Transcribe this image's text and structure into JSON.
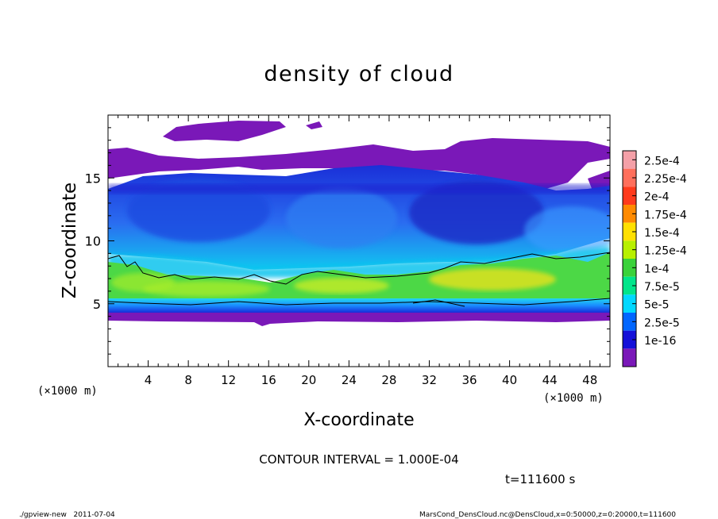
{
  "chart_data": {
    "type": "heatmap",
    "title": "density of cloud",
    "xlabel": "X-coordinate",
    "ylabel": "Z-coordinate",
    "x_unit": "(×1000 m)",
    "y_unit": "(×1000 m)",
    "xlim": [
      0,
      50
    ],
    "ylim": [
      0,
      20
    ],
    "x_ticks": [
      4,
      8,
      12,
      16,
      20,
      24,
      28,
      32,
      36,
      40,
      44,
      48
    ],
    "y_ticks": [
      5,
      10,
      15
    ],
    "colorbar": {
      "labels": [
        "2.5e-4",
        "2.25e-4",
        "2e-4",
        "1.75e-4",
        "1.5e-4",
        "1.25e-4",
        "1e-4",
        "7.5e-5",
        "5e-5",
        "2.5e-5",
        "1e-16"
      ],
      "colors": [
        "#f4a0a8",
        "#ff6f5c",
        "#ff3a1c",
        "#ff8a00",
        "#ffe000",
        "#b8f000",
        "#3ad23a",
        "#00e58a",
        "#00d8ff",
        "#0066ff",
        "#1410d8",
        "#7a18b8"
      ]
    },
    "layers": [
      {
        "z_bottom": 3.6,
        "z_top": 4.0,
        "density": "1e-16 to 2.5e-5",
        "color": "#7a18b8"
      },
      {
        "z_bottom": 4.0,
        "z_top": 5.0,
        "density": "2.5e-5 to 7.5e-5",
        "color": "#1e7cff"
      },
      {
        "z_bottom": 5.0,
        "z_top": 8.0,
        "density": "1e-4 to 1.75e-4",
        "color": "#58e02c"
      },
      {
        "z_bottom": 8.0,
        "z_top": 10.0,
        "density": "5e-5 to 7.5e-5",
        "color": "#00c8f0"
      },
      {
        "z_bottom": 10.0,
        "z_top": 15.0,
        "density": "2.5e-5 to 5e-5",
        "color": "#1a3ce6"
      },
      {
        "z_bottom": 15.0,
        "z_top": 19.5,
        "density": "1e-16 to 2.5e-5",
        "color": "#7a18b8"
      }
    ],
    "contour_interval": "CONTOUR INTERVAL = 1.000E-04",
    "time": "t=111600 s"
  },
  "footer": {
    "left": "./gpview-new   2011-07-04",
    "right": "MarsCond_DensCloud.nc@DensCloud,x=0:50000,z=0:20000,t=111600"
  }
}
